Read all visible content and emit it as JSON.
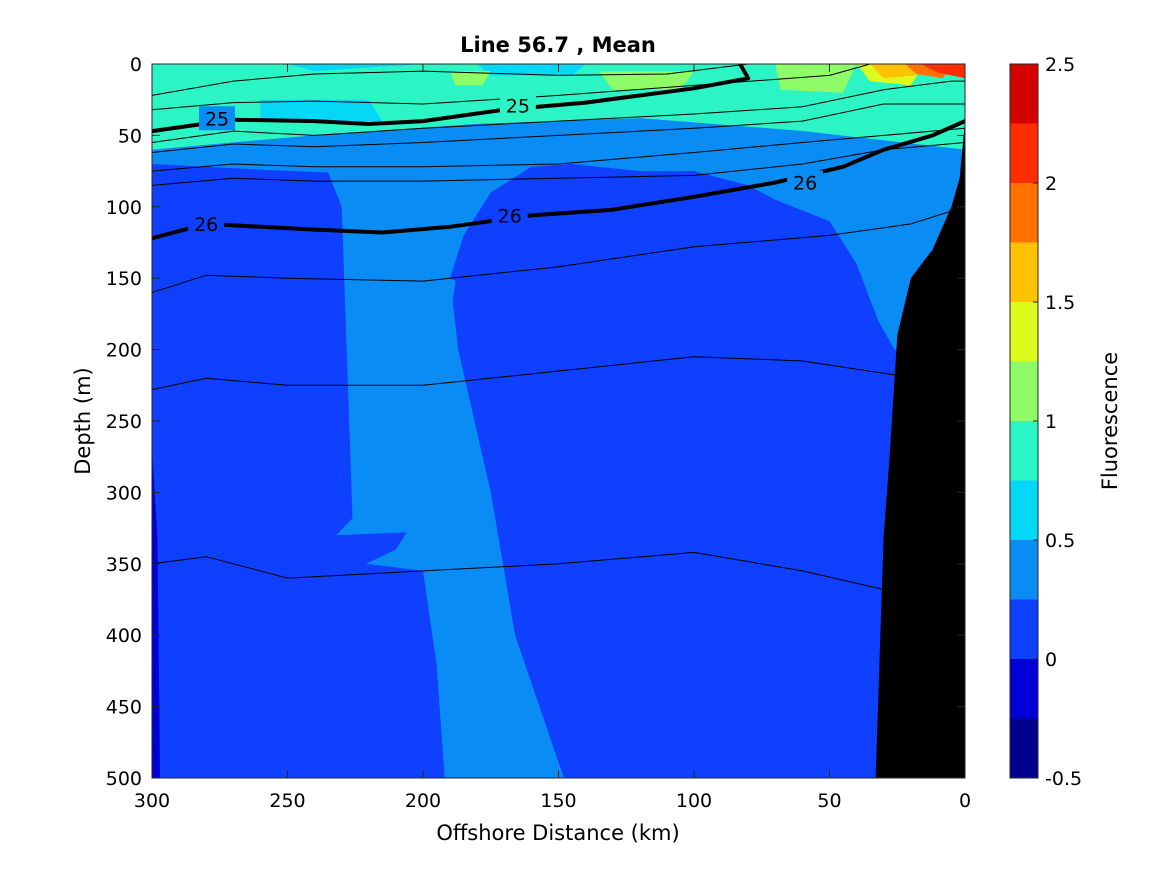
{
  "chart_data": {
    "type": "filled-contour",
    "title": "Line 56.7 , Mean",
    "xlabel": "Offshore Distance (km)",
    "ylabel": "Depth (m)",
    "xlim": [
      300,
      0
    ],
    "ylim": [
      500,
      0
    ],
    "x_reversed": true,
    "y_reversed": true,
    "xticks": [
      "300",
      "250",
      "200",
      "150",
      "100",
      "50",
      "0"
    ],
    "yticks": [
      "0",
      "50",
      "100",
      "150",
      "200",
      "250",
      "300",
      "350",
      "400",
      "450",
      "500"
    ],
    "colorbar": {
      "label": "Fluorescence",
      "range": [
        -0.5,
        2.5
      ],
      "ticks": [
        "-0.5",
        "0",
        "0.5",
        "1",
        "1.5",
        "2",
        "2.5"
      ],
      "levels": [
        {
          "from": -0.5,
          "to": -0.25,
          "color": "#00008f"
        },
        {
          "from": -0.25,
          "to": 0.0,
          "color": "#0000d7"
        },
        {
          "from": 0.0,
          "to": 0.25,
          "color": "#0f3fff"
        },
        {
          "from": 0.25,
          "to": 0.5,
          "color": "#0a8cf5"
        },
        {
          "from": 0.5,
          "to": 0.75,
          "color": "#05d8f7"
        },
        {
          "from": 0.75,
          "to": 1.0,
          "color": "#2bf5c5"
        },
        {
          "from": 1.0,
          "to": 1.25,
          "color": "#8efc66"
        },
        {
          "from": 1.25,
          "to": 1.5,
          "color": "#dcfb1b"
        },
        {
          "from": 1.5,
          "to": 1.75,
          "color": "#ffc200"
        },
        {
          "from": 1.75,
          "to": 2.0,
          "color": "#ff7200"
        },
        {
          "from": 2.0,
          "to": 2.25,
          "color": "#ff2d00"
        },
        {
          "from": 2.25,
          "to": 2.5,
          "color": "#d50000"
        }
      ]
    },
    "regions": [
      {
        "level": 0.875,
        "points": [
          [
            300,
            0
          ],
          [
            0,
            0
          ],
          [
            0,
            60
          ],
          [
            60,
            47
          ],
          [
            120,
            38
          ],
          [
            180,
            42
          ],
          [
            240,
            50
          ],
          [
            300,
            60
          ]
        ]
      },
      {
        "level": 0.625,
        "points": [
          [
            300,
            0
          ],
          [
            250,
            0
          ],
          [
            240,
            5
          ],
          [
            200,
            0
          ],
          [
            300,
            0
          ]
        ]
      },
      {
        "level": 0.625,
        "points": [
          [
            180,
            0
          ],
          [
            140,
            0
          ],
          [
            145,
            8
          ],
          [
            175,
            8
          ]
        ]
      },
      {
        "level": 0.625,
        "points": [
          [
            260,
            25
          ],
          [
            220,
            25
          ],
          [
            215,
            40
          ],
          [
            260,
            40
          ]
        ]
      },
      {
        "level": 1.125,
        "points": [
          [
            190,
            5
          ],
          [
            175,
            5
          ],
          [
            178,
            15
          ],
          [
            188,
            15
          ]
        ]
      },
      {
        "level": 1.125,
        "points": [
          [
            135,
            5
          ],
          [
            100,
            5
          ],
          [
            105,
            18
          ],
          [
            130,
            18
          ]
        ]
      },
      {
        "level": 1.125,
        "points": [
          [
            70,
            0
          ],
          [
            40,
            0
          ],
          [
            45,
            20
          ],
          [
            68,
            18
          ]
        ]
      },
      {
        "level": 1.375,
        "points": [
          [
            40,
            0
          ],
          [
            15,
            0
          ],
          [
            20,
            15
          ],
          [
            35,
            12
          ]
        ]
      },
      {
        "level": 1.625,
        "points": [
          [
            35,
            0
          ],
          [
            15,
            0
          ],
          [
            18,
            8
          ],
          [
            30,
            10
          ]
        ]
      },
      {
        "level": 1.875,
        "points": [
          [
            22,
            0
          ],
          [
            5,
            0
          ],
          [
            8,
            10
          ],
          [
            18,
            7
          ]
        ]
      },
      {
        "level": 2.125,
        "points": [
          [
            16,
            0
          ],
          [
            0,
            0
          ],
          [
            0,
            10
          ],
          [
            10,
            6
          ]
        ]
      },
      {
        "level": 0.375,
        "points": [
          [
            300,
            60
          ],
          [
            240,
            50
          ],
          [
            180,
            42
          ],
          [
            120,
            38
          ],
          [
            60,
            47
          ],
          [
            0,
            60
          ],
          [
            0,
            500
          ],
          [
            300,
            500
          ]
        ]
      },
      {
        "level": 0.125,
        "points": [
          [
            300,
            70
          ],
          [
            260,
            74
          ],
          [
            235,
            76
          ],
          [
            230,
            100
          ],
          [
            226,
            318
          ],
          [
            232,
            330
          ],
          [
            206,
            328
          ],
          [
            210,
            340
          ],
          [
            221,
            350
          ],
          [
            200,
            355
          ],
          [
            195,
            420
          ],
          [
            192,
            500
          ],
          [
            148,
            500
          ],
          [
            166,
            400
          ],
          [
            175,
            300
          ],
          [
            187,
            200
          ],
          [
            190,
            150
          ],
          [
            185,
            120
          ],
          [
            175,
            90
          ],
          [
            160,
            72
          ],
          [
            145,
            70
          ],
          [
            120,
            75
          ],
          [
            100,
            75
          ],
          [
            80,
            85
          ],
          [
            70,
            95
          ],
          [
            50,
            110
          ],
          [
            40,
            140
          ],
          [
            32,
            180
          ],
          [
            26,
            200
          ],
          [
            5,
            200
          ],
          [
            5,
            500
          ],
          [
            300,
            500
          ]
        ]
      },
      {
        "level": 0.375,
        "points": [
          [
            200,
            140
          ],
          [
            193,
            145
          ],
          [
            188,
            152
          ],
          [
            190,
            178
          ],
          [
            200,
            182
          ]
        ]
      },
      {
        "level": -0.125,
        "points": [
          [
            300,
            270
          ],
          [
            298,
            330
          ],
          [
            297,
            500
          ],
          [
            300,
            500
          ]
        ]
      }
    ],
    "bathymetry": {
      "label": "seafloor",
      "points": [
        [
          0,
          40
        ],
        [
          2,
          80
        ],
        [
          5,
          100
        ],
        [
          12,
          130
        ],
        [
          20,
          150
        ],
        [
          25,
          190
        ],
        [
          28,
          280
        ],
        [
          30,
          330
        ],
        [
          33,
          500
        ],
        [
          0,
          500
        ]
      ]
    },
    "isopycnals": [
      {
        "label": "",
        "bold": false,
        "points": [
          [
            300,
            22
          ],
          [
            270,
            12
          ],
          [
            240,
            7
          ],
          [
            200,
            5
          ],
          [
            150,
            8
          ],
          [
            110,
            7
          ],
          [
            80,
            0
          ]
        ]
      },
      {
        "label": "",
        "bold": false,
        "points": [
          [
            300,
            32
          ],
          [
            270,
            27
          ],
          [
            240,
            26
          ],
          [
            200,
            28
          ],
          [
            150,
            22
          ],
          [
            100,
            15
          ],
          [
            50,
            8
          ],
          [
            35,
            0
          ]
        ]
      },
      {
        "label": "25",
        "label_at": [
          [
            276,
            38
          ],
          [
            165,
            29
          ]
        ],
        "bold": true,
        "points": [
          [
            300,
            47
          ],
          [
            270,
            39
          ],
          [
            240,
            40
          ],
          [
            220,
            42
          ],
          [
            200,
            40
          ],
          [
            170,
            32
          ],
          [
            140,
            27
          ],
          [
            100,
            17
          ],
          [
            80,
            10
          ],
          [
            83,
            0
          ]
        ]
      },
      {
        "label": "",
        "bold": false,
        "points": [
          [
            300,
            55
          ],
          [
            270,
            47
          ],
          [
            240,
            50
          ],
          [
            200,
            45
          ],
          [
            150,
            40
          ],
          [
            100,
            35
          ],
          [
            60,
            30
          ],
          [
            30,
            18
          ],
          [
            5,
            12
          ],
          [
            0,
            12
          ]
        ]
      },
      {
        "label": "",
        "bold": false,
        "points": [
          [
            300,
            62
          ],
          [
            270,
            56
          ],
          [
            240,
            58
          ],
          [
            200,
            55
          ],
          [
            150,
            50
          ],
          [
            100,
            45
          ],
          [
            60,
            40
          ],
          [
            30,
            28
          ],
          [
            0,
            28
          ]
        ]
      },
      {
        "label": "",
        "bold": false,
        "points": [
          [
            300,
            75
          ],
          [
            270,
            70
          ],
          [
            240,
            72
          ],
          [
            200,
            72
          ],
          [
            150,
            70
          ],
          [
            100,
            62
          ],
          [
            60,
            55
          ],
          [
            30,
            50
          ],
          [
            0,
            45
          ]
        ]
      },
      {
        "label": "",
        "bold": false,
        "points": [
          [
            300,
            85
          ],
          [
            270,
            80
          ],
          [
            240,
            82
          ],
          [
            200,
            82
          ],
          [
            150,
            80
          ],
          [
            100,
            78
          ],
          [
            60,
            70
          ],
          [
            30,
            60
          ],
          [
            0,
            55
          ]
        ]
      },
      {
        "label": "26",
        "label_at": [
          [
            280,
            112
          ],
          [
            168,
            106
          ],
          [
            59,
            83
          ]
        ],
        "bold": true,
        "points": [
          [
            300,
            122
          ],
          [
            280,
            112
          ],
          [
            240,
            116
          ],
          [
            215,
            118
          ],
          [
            190,
            114
          ],
          [
            160,
            106
          ],
          [
            130,
            102
          ],
          [
            100,
            93
          ],
          [
            70,
            83
          ],
          [
            45,
            72
          ],
          [
            30,
            60
          ],
          [
            12,
            50
          ],
          [
            0,
            40
          ]
        ]
      },
      {
        "label": "",
        "bold": false,
        "points": [
          [
            300,
            160
          ],
          [
            280,
            148
          ],
          [
            250,
            150
          ],
          [
            200,
            152
          ],
          [
            150,
            142
          ],
          [
            100,
            128
          ],
          [
            50,
            120
          ],
          [
            20,
            112
          ],
          [
            0,
            100
          ]
        ]
      },
      {
        "label": "",
        "bold": false,
        "points": [
          [
            300,
            228
          ],
          [
            280,
            220
          ],
          [
            250,
            225
          ],
          [
            200,
            225
          ],
          [
            150,
            215
          ],
          [
            100,
            205
          ],
          [
            60,
            208
          ],
          [
            25,
            218
          ]
        ]
      },
      {
        "label": "",
        "bold": false,
        "points": [
          [
            300,
            350
          ],
          [
            280,
            345
          ],
          [
            250,
            360
          ],
          [
            200,
            355
          ],
          [
            150,
            350
          ],
          [
            100,
            342
          ],
          [
            60,
            355
          ],
          [
            30,
            368
          ]
        ]
      }
    ]
  }
}
